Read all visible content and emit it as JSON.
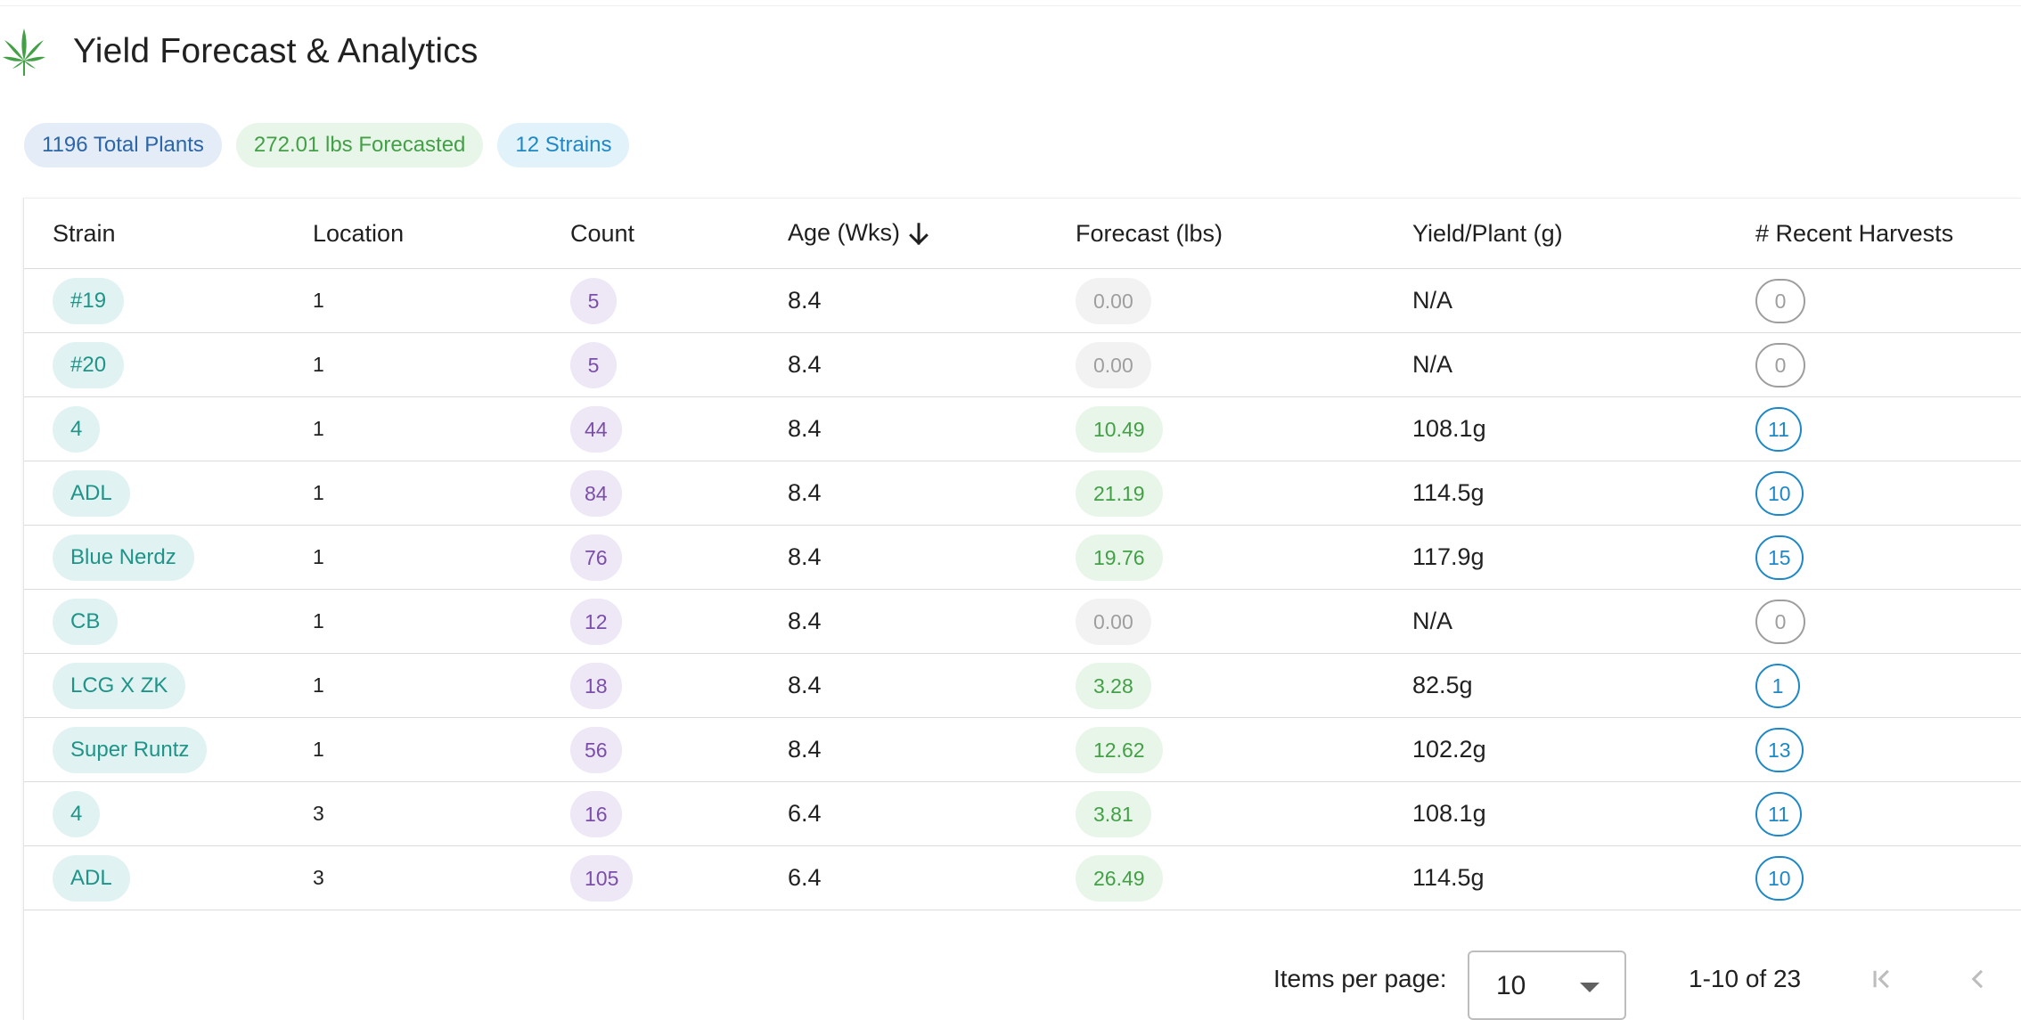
{
  "header": {
    "title": "Yield Forecast & Analytics",
    "icon": "cannabis-leaf-icon",
    "icon_color": "#43a047"
  },
  "summary": {
    "total_plants": "1196 Total Plants",
    "forecasted": "272.01 lbs Forecasted",
    "strains": "12 Strains"
  },
  "table": {
    "columns": {
      "strain": "Strain",
      "location": "Location",
      "count": "Count",
      "age": "Age (Wks)",
      "forecast": "Forecast (lbs)",
      "yield": "Yield/Plant (g)",
      "harvests": "# Recent Harvests"
    },
    "sort": {
      "column": "age",
      "direction": "descending",
      "icon": "arrow-down-icon"
    },
    "rows": [
      {
        "strain": "#19",
        "location": "1",
        "count": "5",
        "age": "8.4",
        "forecast": "0.00",
        "yield": "N/A",
        "harvests": "0"
      },
      {
        "strain": "#20",
        "location": "1",
        "count": "5",
        "age": "8.4",
        "forecast": "0.00",
        "yield": "N/A",
        "harvests": "0"
      },
      {
        "strain": "4",
        "location": "1",
        "count": "44",
        "age": "8.4",
        "forecast": "10.49",
        "yield": "108.1g",
        "harvests": "11"
      },
      {
        "strain": "ADL",
        "location": "1",
        "count": "84",
        "age": "8.4",
        "forecast": "21.19",
        "yield": "114.5g",
        "harvests": "10"
      },
      {
        "strain": "Blue Nerdz",
        "location": "1",
        "count": "76",
        "age": "8.4",
        "forecast": "19.76",
        "yield": "117.9g",
        "harvests": "15"
      },
      {
        "strain": "CB",
        "location": "1",
        "count": "12",
        "age": "8.4",
        "forecast": "0.00",
        "yield": "N/A",
        "harvests": "0"
      },
      {
        "strain": "LCG X ZK",
        "location": "1",
        "count": "18",
        "age": "8.4",
        "forecast": "3.28",
        "yield": "82.5g",
        "harvests": "1"
      },
      {
        "strain": "Super Runtz",
        "location": "1",
        "count": "56",
        "age": "8.4",
        "forecast": "12.62",
        "yield": "102.2g",
        "harvests": "13"
      },
      {
        "strain": "4",
        "location": "3",
        "count": "16",
        "age": "6.4",
        "forecast": "3.81",
        "yield": "108.1g",
        "harvests": "11"
      },
      {
        "strain": "ADL",
        "location": "3",
        "count": "105",
        "age": "6.4",
        "forecast": "26.49",
        "yield": "114.5g",
        "harvests": "10"
      }
    ]
  },
  "paginator": {
    "items_per_page_label": "Items per page:",
    "items_per_page_value": "10",
    "range_label": "1-10 of 23",
    "first_page_icon": "first-page-icon",
    "prev_page_icon": "chevron-left-icon"
  },
  "colors": {
    "strain_chip_bg": "#e0f2f1",
    "strain_chip_text": "#1f9488",
    "count_chip_bg": "#ede7f6",
    "count_chip_text": "#7b4fa8",
    "forecast_chip_bg": "#e8f5e9",
    "forecast_chip_text": "#43a047",
    "harvest_outline": "#1e88c7"
  }
}
